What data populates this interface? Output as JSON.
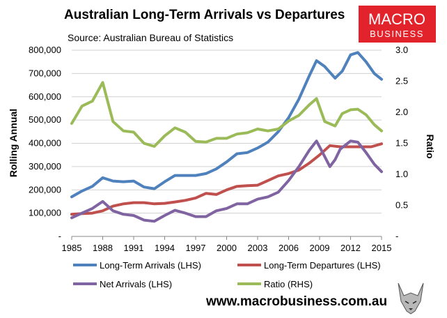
{
  "brand": {
    "logo_line1": "MACRO",
    "logo_line2": "BUSINESS",
    "logo_color": "#e3232b",
    "website": "www.macrobusiness.com.au",
    "mascot_icon": "wolf-head-icon"
  },
  "chart_data": {
    "type": "line",
    "title": "Australian Long-Term Arrivals vs Departures",
    "subtitle": "Source: Australian Bureau of Statistics",
    "ylabel": "Rolling Annual",
    "y2label": "Ratio",
    "xlim": [
      1985,
      2015
    ],
    "ylim": [
      0,
      800000
    ],
    "y2lim": [
      0,
      3.0
    ],
    "x_ticks": [
      "1985",
      "1988",
      "1991",
      "1994",
      "1997",
      "2000",
      "2003",
      "2006",
      "2009",
      "2012",
      "2015"
    ],
    "y_ticks": [
      "-",
      "100,000",
      "200,000",
      "300,000",
      "400,000",
      "500,000",
      "600,000",
      "700,000",
      "800,000"
    ],
    "y2_ticks": [
      "-",
      "0.5",
      "1.0",
      "1.5",
      "2.0",
      "2.5",
      "3.0"
    ],
    "grid": "horizontal",
    "legend_position": "bottom",
    "series": [
      {
        "name": "Long-Term Arrivals (LHS)",
        "axis": "left",
        "color": "#4f81bd",
        "x": [
          1985,
          1986,
          1987,
          1988,
          1989,
          1990,
          1991,
          1992,
          1993,
          1994,
          1995,
          1996,
          1997,
          1998,
          1999,
          2000,
          2001,
          2002,
          2003,
          2004,
          2005,
          2006,
          2007,
          2008,
          2008.7,
          2009.5,
          2010.5,
          2011.2,
          2012,
          2012.7,
          2013.5,
          2014.3,
          2015
        ],
        "values": [
          170000,
          195000,
          215000,
          252000,
          238000,
          235000,
          238000,
          212000,
          205000,
          235000,
          262000,
          262000,
          262000,
          270000,
          290000,
          320000,
          355000,
          360000,
          380000,
          405000,
          450000,
          510000,
          590000,
          690000,
          755000,
          730000,
          680000,
          710000,
          780000,
          790000,
          750000,
          700000,
          675000
        ]
      },
      {
        "name": "Long-Term Departures (LHS)",
        "axis": "left",
        "color": "#c0504d",
        "x": [
          1985,
          1986,
          1987,
          1988,
          1989,
          1990,
          1991,
          1992,
          1993,
          1994,
          1995,
          1996,
          1997,
          1998,
          1999,
          2000,
          2001,
          2002,
          2003,
          2004,
          2005,
          2006,
          2007,
          2008,
          2009,
          2010,
          2011,
          2012,
          2013,
          2014,
          2015
        ],
        "values": [
          95000,
          98000,
          100000,
          110000,
          130000,
          140000,
          145000,
          145000,
          140000,
          142000,
          148000,
          155000,
          165000,
          185000,
          180000,
          200000,
          215000,
          218000,
          220000,
          240000,
          260000,
          270000,
          285000,
          315000,
          350000,
          390000,
          385000,
          385000,
          385000,
          385000,
          398000
        ]
      },
      {
        "name": "Net Arrivals (LHS)",
        "axis": "left",
        "color": "#8064a2",
        "x": [
          1985,
          1986,
          1987,
          1988,
          1989,
          1990,
          1991,
          1992,
          1993,
          1994,
          1995,
          1996,
          1997,
          1998,
          1999,
          2000,
          2001,
          2002,
          2003,
          2004,
          2005,
          2006,
          2007,
          2008,
          2008.7,
          2009.3,
          2010,
          2010.5,
          2011,
          2012,
          2012.7,
          2013.5,
          2014.3,
          2015
        ],
        "values": [
          80000,
          100000,
          120000,
          150000,
          110000,
          95000,
          90000,
          70000,
          65000,
          90000,
          112000,
          100000,
          85000,
          85000,
          110000,
          120000,
          140000,
          140000,
          160000,
          170000,
          190000,
          240000,
          300000,
          370000,
          410000,
          360000,
          300000,
          330000,
          375000,
          410000,
          405000,
          360000,
          310000,
          278000
        ]
      },
      {
        "name": "Ratio (RHS)",
        "axis": "right",
        "color": "#9bbb59",
        "x": [
          1985,
          1986,
          1987,
          1988,
          1989,
          1990,
          1991,
          1992,
          1993,
          1994,
          1995,
          1996,
          1997,
          1998,
          1999,
          2000,
          2001,
          2002,
          2003,
          2004,
          2005,
          2006,
          2007,
          2008,
          2008.7,
          2009.5,
          2010.5,
          2011.2,
          2012,
          2012.7,
          2013.5,
          2014.3,
          2015
        ],
        "values": [
          1.82,
          2.1,
          2.18,
          2.48,
          1.85,
          1.7,
          1.68,
          1.5,
          1.45,
          1.62,
          1.75,
          1.68,
          1.53,
          1.52,
          1.58,
          1.58,
          1.65,
          1.67,
          1.73,
          1.7,
          1.73,
          1.86,
          1.95,
          2.12,
          2.22,
          1.85,
          1.78,
          1.98,
          2.04,
          2.05,
          1.96,
          1.8,
          1.7
        ]
      }
    ]
  }
}
